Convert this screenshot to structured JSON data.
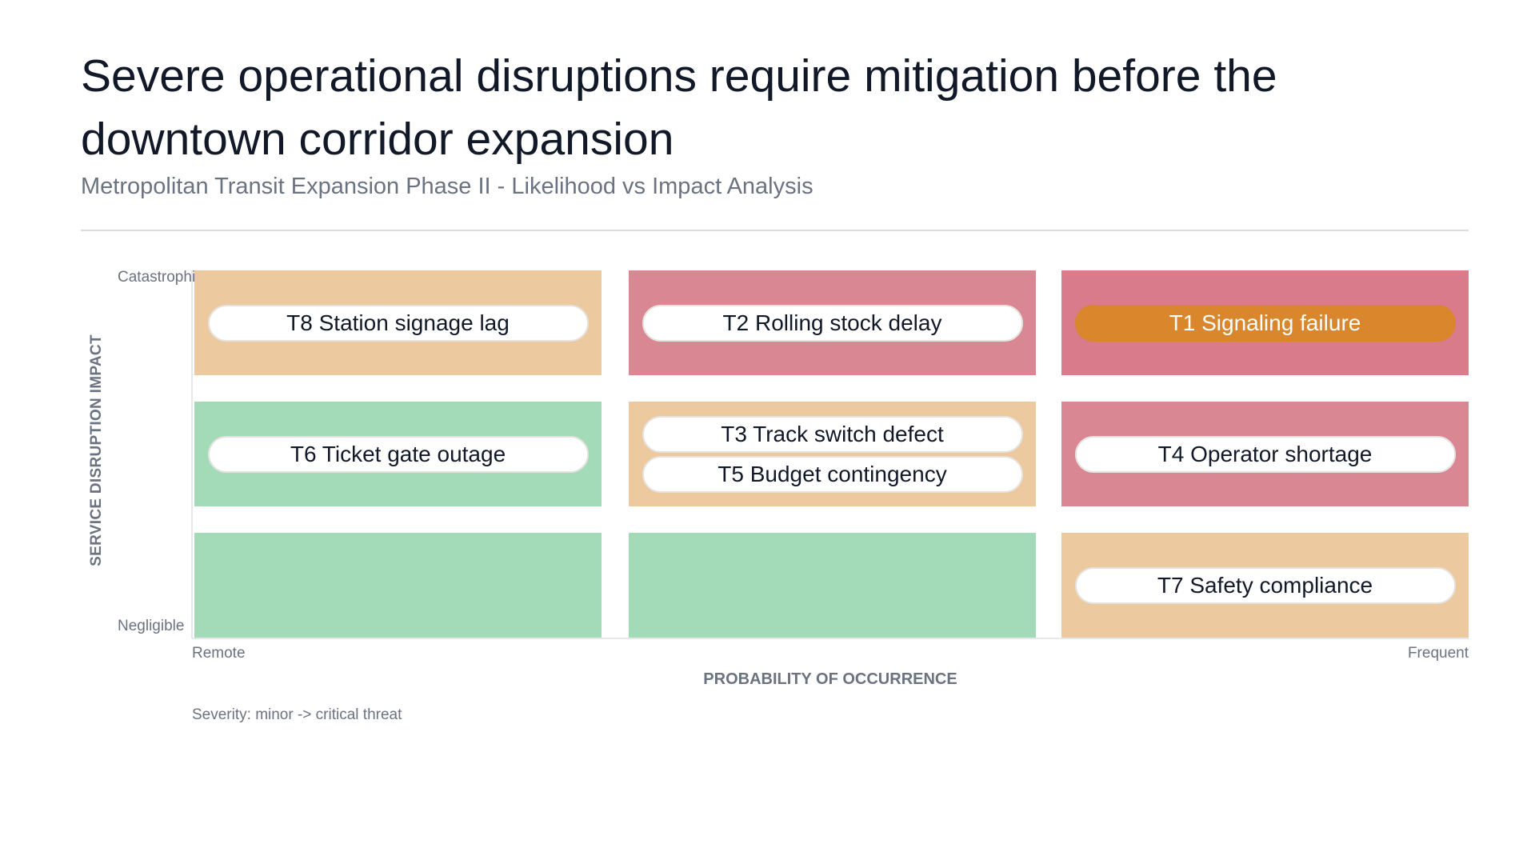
{
  "title": "Severe operational disruptions require mitigation before the downtown corridor expansion",
  "subtitle": "Metropolitan Transit Expansion Phase II - Likelihood vs Impact Analysis",
  "colors": {
    "low": "#a3dbb8",
    "medium": "#edc9a0",
    "high": "#d98893",
    "critical": "#d97b8a",
    "highlight": "#d9862c"
  },
  "chart_data": {
    "type": "heatmap",
    "title": "Severe operational disruptions require mitigation before the downtown corridor expansion",
    "subtitle": "Metropolitan Transit Expansion Phase II - Likelihood vs Impact Analysis",
    "xlabel": "PROBABILITY OF OCCURRENCE",
    "ylabel": "SERVICE DISRUPTION IMPACT",
    "x_ticks": [
      "Remote",
      "Frequent"
    ],
    "y_ticks": [
      "Negligible",
      "Catastrophic"
    ],
    "note": "Severity: minor -> critical threat",
    "grid_columns": 3,
    "grid_rows": 3,
    "cells": [
      {
        "col": 0,
        "row": 2,
        "level": "medium",
        "items": [
          "T8 Station signage lag"
        ]
      },
      {
        "col": 1,
        "row": 2,
        "level": "high",
        "items": [
          "T2 Rolling stock delay"
        ]
      },
      {
        "col": 2,
        "row": 2,
        "level": "critical",
        "items": [
          "T1 Signaling failure"
        ],
        "highlight": "T1 Signaling failure"
      },
      {
        "col": 0,
        "row": 1,
        "level": "low",
        "items": [
          "T6 Ticket gate outage"
        ]
      },
      {
        "col": 1,
        "row": 1,
        "level": "medium",
        "items": [
          "T3 Track switch defect",
          "T5 Budget contingency"
        ]
      },
      {
        "col": 2,
        "row": 1,
        "level": "high",
        "items": [
          "T4 Operator shortage"
        ]
      },
      {
        "col": 0,
        "row": 0,
        "level": "low",
        "items": []
      },
      {
        "col": 1,
        "row": 0,
        "level": "low",
        "items": []
      },
      {
        "col": 2,
        "row": 0,
        "level": "medium",
        "items": [
          "T7 Safety compliance"
        ]
      }
    ]
  }
}
